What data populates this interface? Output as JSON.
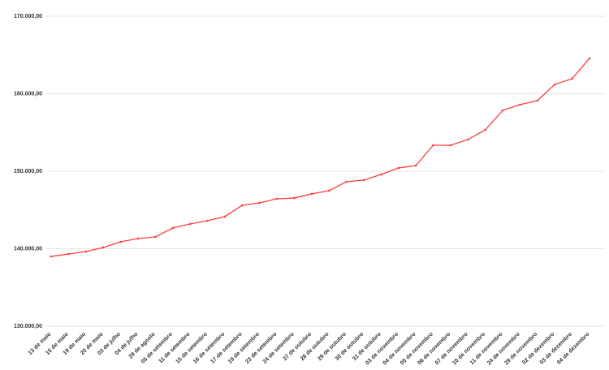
{
  "chart_data": {
    "type": "line",
    "categories": [
      "13 de maio",
      "15 de maio",
      "19 de maio",
      "20 de maio",
      "03 de julho",
      "04 de julho",
      "29 de agosto",
      "05 de setembro",
      "11 de setembro",
      "15 de setembro",
      "16 de setembro",
      "17 de setembro",
      "19 de setembro",
      "23 de setembro",
      "24 de setembro",
      "27 de outubro",
      "28 de outubro",
      "29 de outubro",
      "30 de outubro",
      "31 de outubro",
      "03 de novembro",
      "04 de novembro",
      "05 de novembro",
      "06 de novembro",
      "07 de novembro",
      "10 de novembro",
      "11 de novembro",
      "24 de novembro",
      "29 de novembro",
      "02 de dezembro",
      "03 de dezembro",
      "04 de dezembro"
    ],
    "values": [
      139000,
      139320,
      139630,
      140160,
      140890,
      141310,
      141520,
      142670,
      143190,
      143610,
      144140,
      145600,
      145920,
      146440,
      146540,
      147070,
      147490,
      148640,
      148850,
      149580,
      150420,
      150730,
      153350,
      153350,
      154080,
      155340,
      157850,
      158590,
      159110,
      161200,
      161940,
      164560
    ],
    "color": "#ff3b3b",
    "ylim": [
      130000,
      170000
    ],
    "yticks": [
      {
        "value": 130000,
        "label": "130.000,00"
      },
      {
        "value": 140000,
        "label": "140.000,00"
      },
      {
        "value": 150000,
        "label": "150.000,00"
      },
      {
        "value": 160000,
        "label": "160.000,00"
      },
      {
        "value": 170000,
        "label": "170.000,00"
      }
    ],
    "grid": true
  }
}
